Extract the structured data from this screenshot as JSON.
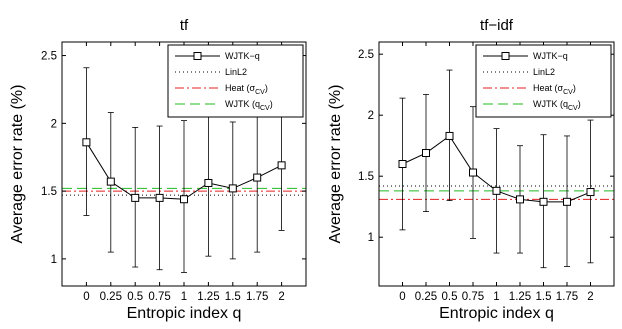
{
  "chart_data": [
    {
      "type": "line",
      "title": "tf",
      "xlabel": "Entropic index q",
      "ylabel": "Average error rate (%)",
      "x": [
        0,
        0.25,
        0.5,
        0.75,
        1,
        1.25,
        1.5,
        1.75,
        2
      ],
      "xtick_labels": [
        "0",
        "0.25",
        "0.5",
        "0.75",
        "1",
        "1.25",
        "1.5",
        "1.75",
        "2"
      ],
      "ytick_labels": [
        "1",
        "1.5",
        "2",
        "2.5"
      ],
      "yticks": [
        1,
        1.5,
        2,
        2.5
      ],
      "xlim": [
        -0.25,
        2.25
      ],
      "ylim": [
        0.8,
        2.6
      ],
      "grid": false,
      "legend_position": "top-right",
      "series": [
        {
          "name": "WJTK−q",
          "kind": "errorbar",
          "color": "#000000",
          "marker": "square",
          "values": [
            1.86,
            1.57,
            1.45,
            1.45,
            1.44,
            1.56,
            1.52,
            1.6,
            1.69
          ],
          "lower": [
            1.32,
            1.05,
            0.94,
            0.92,
            0.9,
            1.02,
            1.0,
            1.05,
            1.21
          ],
          "upper": [
            2.41,
            2.08,
            1.97,
            1.98,
            2.02,
            2.07,
            2.01,
            2.14,
            2.18
          ]
        },
        {
          "name": "LinL2",
          "kind": "hline",
          "value": 1.47,
          "color": "#000000",
          "style": "dotted"
        },
        {
          "name": "Heat (σ",
          "subscript": "CV",
          "suffix": ")",
          "kind": "hline",
          "value": 1.5,
          "color": "#e02020",
          "style": "dashdot"
        },
        {
          "name": "WJTK (q",
          "subscript": "CV",
          "suffix": ")",
          "kind": "hline",
          "value": 1.52,
          "color": "#22bb22",
          "style": "dashed"
        }
      ]
    },
    {
      "type": "line",
      "title": "tf−idf",
      "xlabel": "Entropic index q",
      "ylabel": "Average error rate (%)",
      "x": [
        0,
        0.25,
        0.5,
        0.75,
        1,
        1.25,
        1.5,
        1.75,
        2
      ],
      "xtick_labels": [
        "0",
        "0.25",
        "0.5",
        "0.75",
        "1",
        "1.25",
        "1.5",
        "1.75",
        "2"
      ],
      "ytick_labels": [
        "1",
        "1.5",
        "2",
        "2.5"
      ],
      "yticks": [
        1,
        1.5,
        2,
        2.5
      ],
      "xlim": [
        -0.25,
        2.25
      ],
      "ylim": [
        0.6,
        2.6
      ],
      "grid": false,
      "legend_position": "top-right",
      "series": [
        {
          "name": "WJTK−q",
          "kind": "errorbar",
          "color": "#000000",
          "marker": "square",
          "values": [
            1.6,
            1.69,
            1.83,
            1.53,
            1.38,
            1.31,
            1.29,
            1.29,
            1.37
          ],
          "lower": [
            1.06,
            1.21,
            1.3,
            0.99,
            0.87,
            0.87,
            0.75,
            0.76,
            0.79
          ],
          "upper": [
            2.14,
            2.17,
            2.37,
            2.07,
            1.89,
            1.75,
            1.84,
            1.83,
            1.96
          ]
        },
        {
          "name": "LinL2",
          "kind": "hline",
          "value": 1.42,
          "color": "#000000",
          "style": "dotted"
        },
        {
          "name": "Heat (σ",
          "subscript": "CV",
          "suffix": ")",
          "kind": "hline",
          "value": 1.31,
          "color": "#e02020",
          "style": "dashdot"
        },
        {
          "name": "WJTK (q",
          "subscript": "CV",
          "suffix": ")",
          "kind": "hline",
          "value": 1.38,
          "color": "#22bb22",
          "style": "dashed"
        }
      ]
    }
  ]
}
